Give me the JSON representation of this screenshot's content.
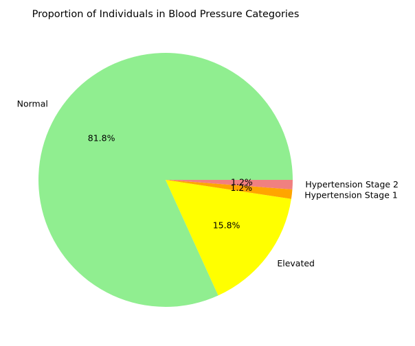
{
  "chart_data": {
    "type": "pie",
    "title": "Proportion of Individuals in Blood Pressure Categories",
    "categories": [
      "Normal",
      "Elevated",
      "Hypertension Stage 1",
      "Hypertension Stage 2"
    ],
    "values": [
      81.8,
      15.8,
      1.2,
      1.2
    ],
    "percent_labels": [
      "81.8%",
      "15.8%",
      "1.2%",
      "1.2%"
    ],
    "colors": [
      "#90ee90",
      "#ffff00",
      "#ffa500",
      "#f08080"
    ],
    "start_angle_deg": 0,
    "direction": "counterclockwise",
    "legend": "none"
  }
}
